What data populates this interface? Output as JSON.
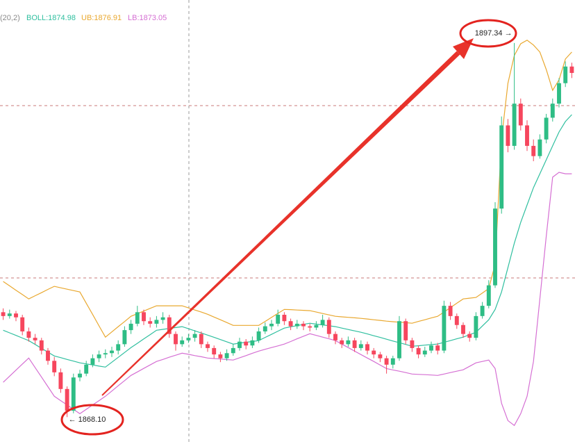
{
  "chart_data": {
    "type": "candlestick",
    "indicator_params": "(20,2)",
    "categories": [
      null,
      null,
      null,
      null,
      null,
      null,
      null,
      null,
      null,
      null,
      null,
      null,
      null,
      null,
      null,
      null,
      null,
      null,
      null,
      null,
      null,
      null,
      null,
      null,
      null,
      null,
      null,
      null,
      null,
      null,
      null,
      null,
      null,
      null,
      null,
      null,
      null,
      null,
      null,
      null,
      null,
      null,
      null,
      null,
      null,
      null,
      null,
      null,
      null,
      null,
      null,
      null,
      null,
      null,
      null,
      null,
      null,
      null,
      null,
      null,
      null,
      null,
      null,
      null,
      null,
      null,
      null,
      null,
      null,
      null,
      null,
      null,
      null,
      null,
      null,
      null,
      null,
      null,
      null,
      null,
      null,
      null,
      null,
      null,
      null,
      null,
      null,
      null,
      null,
      null
    ],
    "open": [
      1876.3,
      1876.0,
      1876.2,
      1875.9,
      1874.8,
      1874.3,
      1874.1,
      1873.3,
      1872.5,
      1871.6,
      1870.3,
      1868.6,
      1871.2,
      1871.5,
      1872.2,
      1872.7,
      1873.0,
      1873.1,
      1873.3,
      1873.8,
      1874.9,
      1875.4,
      1876.3,
      1875.6,
      1875.4,
      1875.7,
      1875.9,
      1874.6,
      1873.8,
      1874.1,
      1874.3,
      1874.6,
      1873.8,
      1873.5,
      1873.0,
      1872.7,
      1873.1,
      1873.5,
      1874.0,
      1873.7,
      1874.1,
      1874.8,
      1875.2,
      1875.4,
      1876.1,
      1875.6,
      1875.2,
      1875.4,
      1875.2,
      1875.1,
      1875.3,
      1875.7,
      1874.6,
      1874.1,
      1873.8,
      1874.1,
      1873.5,
      1873.8,
      1873.3,
      1873.0,
      1872.7,
      1872.2,
      1872.7,
      1875.6,
      1874.1,
      1873.5,
      1873.0,
      1873.3,
      1873.7,
      1873.3,
      1876.8,
      1876.0,
      1875.3,
      1874.6,
      1874.3,
      1876.0,
      1876.8,
      1878.4,
      1884.4,
      1890.9,
      1889.3,
      1892.6,
      1890.9,
      1889.3,
      1888.5,
      1889.8,
      1891.5,
      1892.6,
      1894.2,
      1895.5
    ],
    "high": [
      1876.6,
      1876.5,
      1876.4,
      1876.1,
      1875.1,
      1874.6,
      1874.3,
      1873.5,
      1872.8,
      1871.9,
      1870.5,
      1871.5,
      1871.8,
      1872.5,
      1873.0,
      1873.3,
      1873.4,
      1873.6,
      1874.1,
      1875.2,
      1875.7,
      1876.8,
      1876.5,
      1875.9,
      1876.0,
      1876.3,
      1876.1,
      1874.8,
      1874.4,
      1874.6,
      1874.9,
      1874.8,
      1874.0,
      1873.7,
      1873.2,
      1873.4,
      1873.8,
      1874.3,
      1874.2,
      1874.4,
      1875.1,
      1875.5,
      1875.7,
      1876.5,
      1876.3,
      1875.8,
      1875.7,
      1875.6,
      1875.4,
      1875.6,
      1876.1,
      1875.9,
      1874.8,
      1874.3,
      1874.4,
      1874.3,
      1874.1,
      1874.0,
      1873.5,
      1873.2,
      1872.9,
      1872.9,
      1876.0,
      1875.8,
      1874.3,
      1873.7,
      1873.6,
      1874.0,
      1873.9,
      1877.2,
      1877.1,
      1876.2,
      1875.5,
      1874.8,
      1876.3,
      1877.1,
      1878.8,
      1884.9,
      1891.6,
      1891.4,
      1897.34,
      1893.0,
      1891.3,
      1889.8,
      1890.2,
      1891.8,
      1893.0,
      1894.6,
      1895.9,
      1895.8
    ],
    "low": [
      1875.7,
      1875.8,
      1875.6,
      1874.5,
      1874.0,
      1873.8,
      1873.0,
      1872.2,
      1871.3,
      1870.0,
      1868.1,
      1868.4,
      1870.9,
      1871.3,
      1872.0,
      1872.4,
      1872.7,
      1872.8,
      1873.0,
      1873.6,
      1874.6,
      1875.2,
      1875.3,
      1875.1,
      1875.1,
      1875.4,
      1874.3,
      1873.3,
      1873.6,
      1873.9,
      1874.0,
      1873.5,
      1873.2,
      1872.7,
      1872.4,
      1872.5,
      1872.9,
      1873.3,
      1873.4,
      1873.5,
      1873.9,
      1874.6,
      1874.9,
      1875.2,
      1875.3,
      1874.9,
      1875.0,
      1874.9,
      1874.8,
      1874.9,
      1875.1,
      1874.3,
      1873.8,
      1873.5,
      1873.6,
      1873.2,
      1873.3,
      1873.0,
      1872.7,
      1872.4,
      1871.5,
      1871.9,
      1872.5,
      1873.8,
      1873.2,
      1872.7,
      1872.8,
      1873.1,
      1873.0,
      1873.1,
      1875.7,
      1875.0,
      1874.3,
      1874.0,
      1874.1,
      1875.8,
      1876.6,
      1878.2,
      1884.0,
      1888.8,
      1889.0,
      1890.5,
      1888.9,
      1888.1,
      1888.3,
      1889.5,
      1891.2,
      1892.3,
      1893.9,
      1894.6
    ],
    "close": [
      1876.0,
      1876.2,
      1875.9,
      1874.8,
      1874.3,
      1874.1,
      1873.3,
      1872.5,
      1871.6,
      1870.3,
      1868.6,
      1871.2,
      1871.5,
      1872.2,
      1872.7,
      1873.0,
      1873.1,
      1873.3,
      1873.8,
      1874.9,
      1875.4,
      1876.3,
      1875.6,
      1875.4,
      1875.7,
      1875.9,
      1874.6,
      1873.8,
      1874.1,
      1874.3,
      1874.6,
      1873.8,
      1873.5,
      1873.0,
      1872.7,
      1873.1,
      1873.5,
      1874.0,
      1873.7,
      1874.1,
      1874.8,
      1875.2,
      1875.4,
      1876.1,
      1875.6,
      1875.2,
      1875.4,
      1875.2,
      1875.1,
      1875.3,
      1875.7,
      1874.6,
      1874.1,
      1873.8,
      1874.1,
      1873.5,
      1873.8,
      1873.3,
      1873.0,
      1872.7,
      1872.2,
      1872.7,
      1875.6,
      1874.1,
      1873.5,
      1873.0,
      1873.3,
      1873.7,
      1873.3,
      1876.8,
      1876.0,
      1875.3,
      1874.6,
      1874.3,
      1876.0,
      1876.8,
      1878.4,
      1884.4,
      1890.9,
      1889.3,
      1892.6,
      1890.9,
      1889.3,
      1888.5,
      1889.8,
      1891.5,
      1892.6,
      1894.2,
      1895.5,
      1895.0
    ],
    "up_color": "#2ebd85",
    "down_color": "#f6465d",
    "series": [
      {
        "name": "BOLL:1874.98",
        "color": "#2fbf9f",
        "values": [
          1874.89,
          1874.69,
          1874.49,
          1874.28,
          1874.08,
          1873.78,
          1873.48,
          1873.18,
          1872.88,
          1872.75,
          1872.61,
          1872.48,
          1872.34,
          1872.26,
          1872.18,
          1872.09,
          1872.01,
          1872.39,
          1872.77,
          1873.15,
          1873.53,
          1873.87,
          1874.21,
          1874.55,
          1874.89,
          1874.96,
          1875.03,
          1875.1,
          1875.17,
          1875.01,
          1874.84,
          1874.68,
          1874.51,
          1874.34,
          1874.16,
          1873.99,
          1873.81,
          1873.88,
          1873.95,
          1874.01,
          1874.08,
          1874.33,
          1874.57,
          1874.82,
          1875.06,
          1875.16,
          1875.25,
          1875.35,
          1875.44,
          1875.37,
          1875.31,
          1875.24,
          1875.17,
          1875.06,
          1874.95,
          1874.84,
          1874.73,
          1874.6,
          1874.46,
          1874.33,
          1874.19,
          1874.05,
          1873.92,
          1873.78,
          1873.64,
          1873.68,
          1873.73,
          1873.77,
          1873.81,
          1873.95,
          1874.08,
          1874.22,
          1874.35,
          1874.54,
          1874.73,
          1875.22,
          1875.71,
          1876.52,
          1877.88,
          1879.78,
          1881.69,
          1883.32,
          1884.68,
          1886.03,
          1887.12,
          1888.21,
          1889.3,
          1890.38,
          1891.2,
          1891.74
        ]
      },
      {
        "name": "UB:1876.91",
        "color": "#e9a82f",
        "values": [
          1878.7,
          1878.36,
          1878.02,
          1877.68,
          1877.34,
          1877.59,
          1877.83,
          1878.08,
          1878.32,
          1878.21,
          1878.1,
          1877.99,
          1877.88,
          1877.0,
          1876.12,
          1875.23,
          1874.35,
          1874.76,
          1875.17,
          1875.57,
          1875.98,
          1876.19,
          1876.39,
          1876.6,
          1876.8,
          1876.8,
          1876.8,
          1876.8,
          1876.8,
          1876.64,
          1876.47,
          1876.31,
          1876.14,
          1875.92,
          1875.71,
          1875.49,
          1875.27,
          1875.27,
          1875.27,
          1875.27,
          1875.27,
          1875.58,
          1875.9,
          1876.21,
          1876.52,
          1876.5,
          1876.47,
          1876.45,
          1876.42,
          1876.31,
          1876.2,
          1876.09,
          1875.98,
          1875.94,
          1875.9,
          1875.86,
          1875.82,
          1875.77,
          1875.71,
          1875.66,
          1875.6,
          1875.56,
          1875.52,
          1875.48,
          1875.44,
          1875.58,
          1875.71,
          1875.85,
          1875.98,
          1876.32,
          1876.66,
          1877.0,
          1877.34,
          1877.4,
          1877.45,
          1877.8,
          1878.15,
          1880.06,
          1889.84,
          1894.19,
          1896.36,
          1897.28,
          1897.56,
          1897.18,
          1896.63,
          1895.27,
          1893.64,
          1894.46,
          1896.09,
          1896.63
        ]
      },
      {
        "name": "LB:1873.05",
        "color": "#d56fd3",
        "values": [
          1870.82,
          1871.3,
          1871.77,
          1872.25,
          1872.72,
          1871.97,
          1871.23,
          1870.48,
          1869.73,
          1869.39,
          1869.05,
          1868.71,
          1868.37,
          1868.71,
          1869.05,
          1869.39,
          1869.73,
          1870.14,
          1870.55,
          1870.95,
          1871.36,
          1871.63,
          1871.91,
          1872.18,
          1872.45,
          1872.61,
          1872.78,
          1872.94,
          1873.1,
          1873.01,
          1872.91,
          1872.82,
          1872.72,
          1872.68,
          1872.64,
          1872.6,
          1872.56,
          1872.74,
          1872.91,
          1873.09,
          1873.26,
          1873.4,
          1873.54,
          1873.67,
          1873.81,
          1874.01,
          1874.22,
          1874.42,
          1874.62,
          1874.49,
          1874.35,
          1874.22,
          1874.08,
          1873.81,
          1873.54,
          1873.26,
          1872.99,
          1872.72,
          1872.45,
          1872.17,
          1871.9,
          1871.79,
          1871.69,
          1871.58,
          1871.47,
          1871.44,
          1871.42,
          1871.39,
          1871.36,
          1871.47,
          1871.58,
          1871.69,
          1871.8,
          1872.07,
          1872.34,
          1872.45,
          1872.56,
          1871.9,
          1869.19,
          1867.83,
          1867.45,
          1868.37,
          1869.73,
          1872.45,
          1877.34,
          1882.23,
          1886.85,
          1887.23,
          1887.12,
          1887.12
        ]
      }
    ],
    "ylim": [
      1866.0,
      1900.7
    ],
    "annotations": [
      {
        "value": 1868.1,
        "label": "← 1868.10",
        "at": "low"
      },
      {
        "value": 1897.34,
        "label": "1897.34 →",
        "at": "high"
      }
    ]
  }
}
